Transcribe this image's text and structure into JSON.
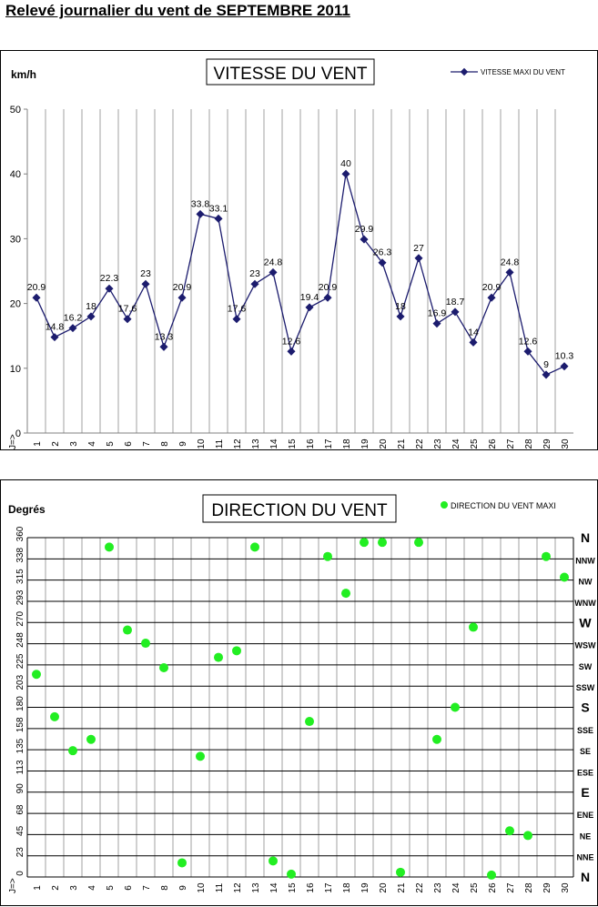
{
  "page": {
    "title": "Relevé journalier du vent de SEPTEMBRE 2011"
  },
  "chart_data": [
    {
      "type": "line",
      "title": "VITESSE DU VENT",
      "ylabel": "km/h",
      "xlabel": "J=>",
      "ylim": [
        0,
        50
      ],
      "yticks": [
        "0",
        "10",
        "20",
        "30",
        "40",
        "50"
      ],
      "categories": [
        "1",
        "2",
        "3",
        "4",
        "5",
        "6",
        "7",
        "8",
        "9",
        "10",
        "11",
        "12",
        "13",
        "14",
        "15",
        "16",
        "17",
        "18",
        "19",
        "20",
        "21",
        "22",
        "23",
        "24",
        "25",
        "26",
        "27",
        "28",
        "29",
        "30"
      ],
      "series": [
        {
          "name": "VITESSE MAXI DU VENT",
          "color": "#1c1c6e",
          "values": [
            20.9,
            14.8,
            16.2,
            18,
            22.3,
            17.6,
            23,
            13.3,
            20.9,
            33.8,
            33.1,
            17.6,
            23,
            24.8,
            12.6,
            19.4,
            20.9,
            40,
            29.9,
            26.3,
            18,
            27,
            16.9,
            18.7,
            14,
            20.9,
            24.8,
            12.6,
            9,
            10.3
          ],
          "labels": [
            "20.9",
            "14.8",
            "16.2",
            "18",
            "22.3",
            "17.6",
            "23",
            "13.3",
            "20.9",
            "33.8",
            "33.1",
            "17.6",
            "23",
            "24.8",
            "12.6",
            "19.4",
            "20.9",
            "40",
            "29.9",
            "26.3",
            "18",
            "27",
            "16.9",
            "18.7",
            "14",
            "20.9",
            "24.8",
            "12.6",
            "9",
            "10.3"
          ]
        }
      ],
      "grid": "vertical",
      "legend": "top-right"
    },
    {
      "type": "scatter",
      "title": "DIRECTION DU VENT",
      "ylabel": "Degrés",
      "xlabel": "J=>",
      "ylim": [
        0,
        360
      ],
      "yticks": [
        "0",
        "23",
        "45",
        "68",
        "90",
        "113",
        "135",
        "158",
        "180",
        "203",
        "225",
        "248",
        "270",
        "293",
        "315",
        "338",
        "360"
      ],
      "direction_labels": [
        "N",
        "NNE",
        "NE",
        "ENE",
        "E",
        "ESE",
        "SE",
        "SSE",
        "S",
        "SSW",
        "SW",
        "WSW",
        "W",
        "WNW",
        "NW",
        "NNW",
        "N"
      ],
      "categories": [
        "1",
        "2",
        "3",
        "4",
        "5",
        "6",
        "7",
        "8",
        "9",
        "10",
        "11",
        "12",
        "13",
        "14",
        "15",
        "16",
        "17",
        "18",
        "19",
        "20",
        "21",
        "22",
        "23",
        "24",
        "25",
        "26",
        "27",
        "28",
        "29",
        "30"
      ],
      "series": [
        {
          "name": "DIRECTION DU VENT MAXI",
          "color": "#22ee22",
          "values": [
            215,
            170,
            134,
            146,
            350,
            262,
            248,
            222,
            15,
            128,
            233,
            240,
            350,
            17,
            3,
            165,
            340,
            301,
            355,
            355,
            5,
            355,
            146,
            180,
            265,
            2,
            49,
            44,
            340,
            318
          ]
        }
      ],
      "grid": "horizontal and vertical",
      "legend": "top-right"
    }
  ]
}
